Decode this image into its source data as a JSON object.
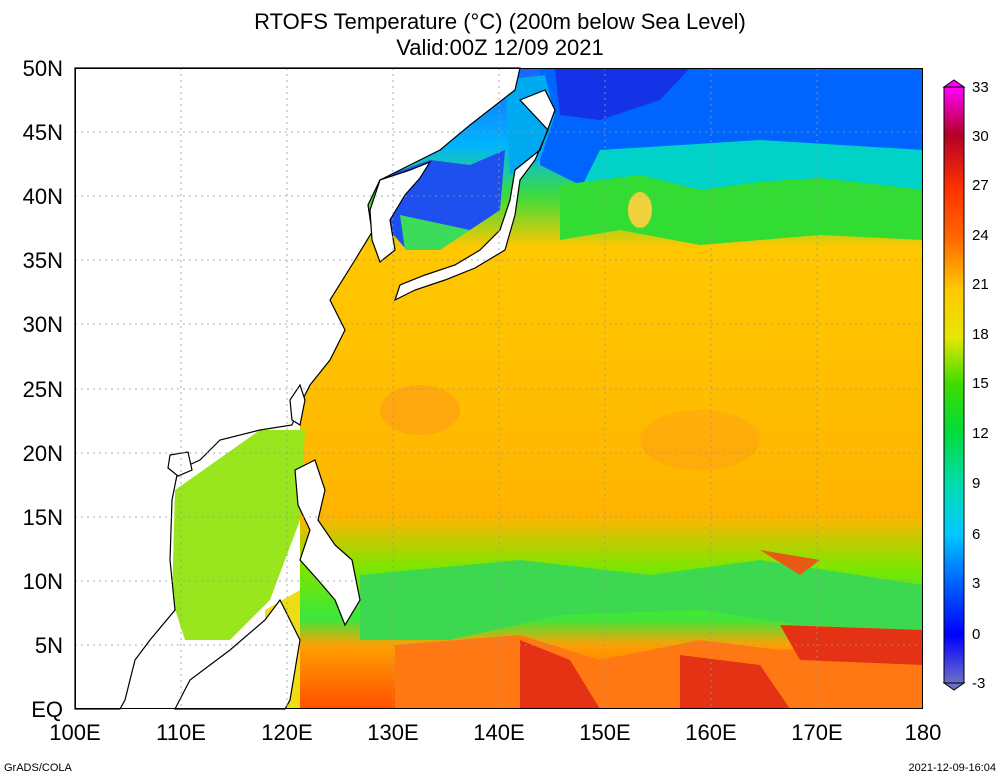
{
  "title": {
    "line1": "RTOFS Temperature (°C) (200m below Sea Level)",
    "line2": "Valid:00Z 12/09 2021"
  },
  "map": {
    "lat_labels": [
      "50N",
      "45N",
      "40N",
      "35N",
      "30N",
      "25N",
      "20N",
      "15N",
      "10N",
      "5N",
      "EQ"
    ],
    "lon_labels": [
      "100E",
      "110E",
      "120E",
      "130E",
      "140E",
      "150E",
      "160E",
      "170E",
      "180"
    ],
    "lat_range": [
      0,
      50
    ],
    "lon_range": [
      100,
      180
    ],
    "gridlines": true
  },
  "colorbar": {
    "ticks": [
      "33",
      "30",
      "27",
      "24",
      "21",
      "18",
      "15",
      "12",
      "9",
      "6",
      "3",
      "0",
      "-3"
    ],
    "range": [
      -3,
      33
    ],
    "colors": [
      "#6e6ec8",
      "#2828c8",
      "#0000ff",
      "#0064ff",
      "#00c8ff",
      "#00dcb4",
      "#00dc3c",
      "#3cdc00",
      "#a0e600",
      "#e6e600",
      "#ffc800",
      "#ffa000",
      "#ff6400",
      "#ff3200",
      "#e60000",
      "#b40028",
      "#c8008c",
      "#ff00ff"
    ]
  },
  "footer": {
    "left": "GrADS/COLA",
    "right": "2021-12-09-16:04"
  }
}
